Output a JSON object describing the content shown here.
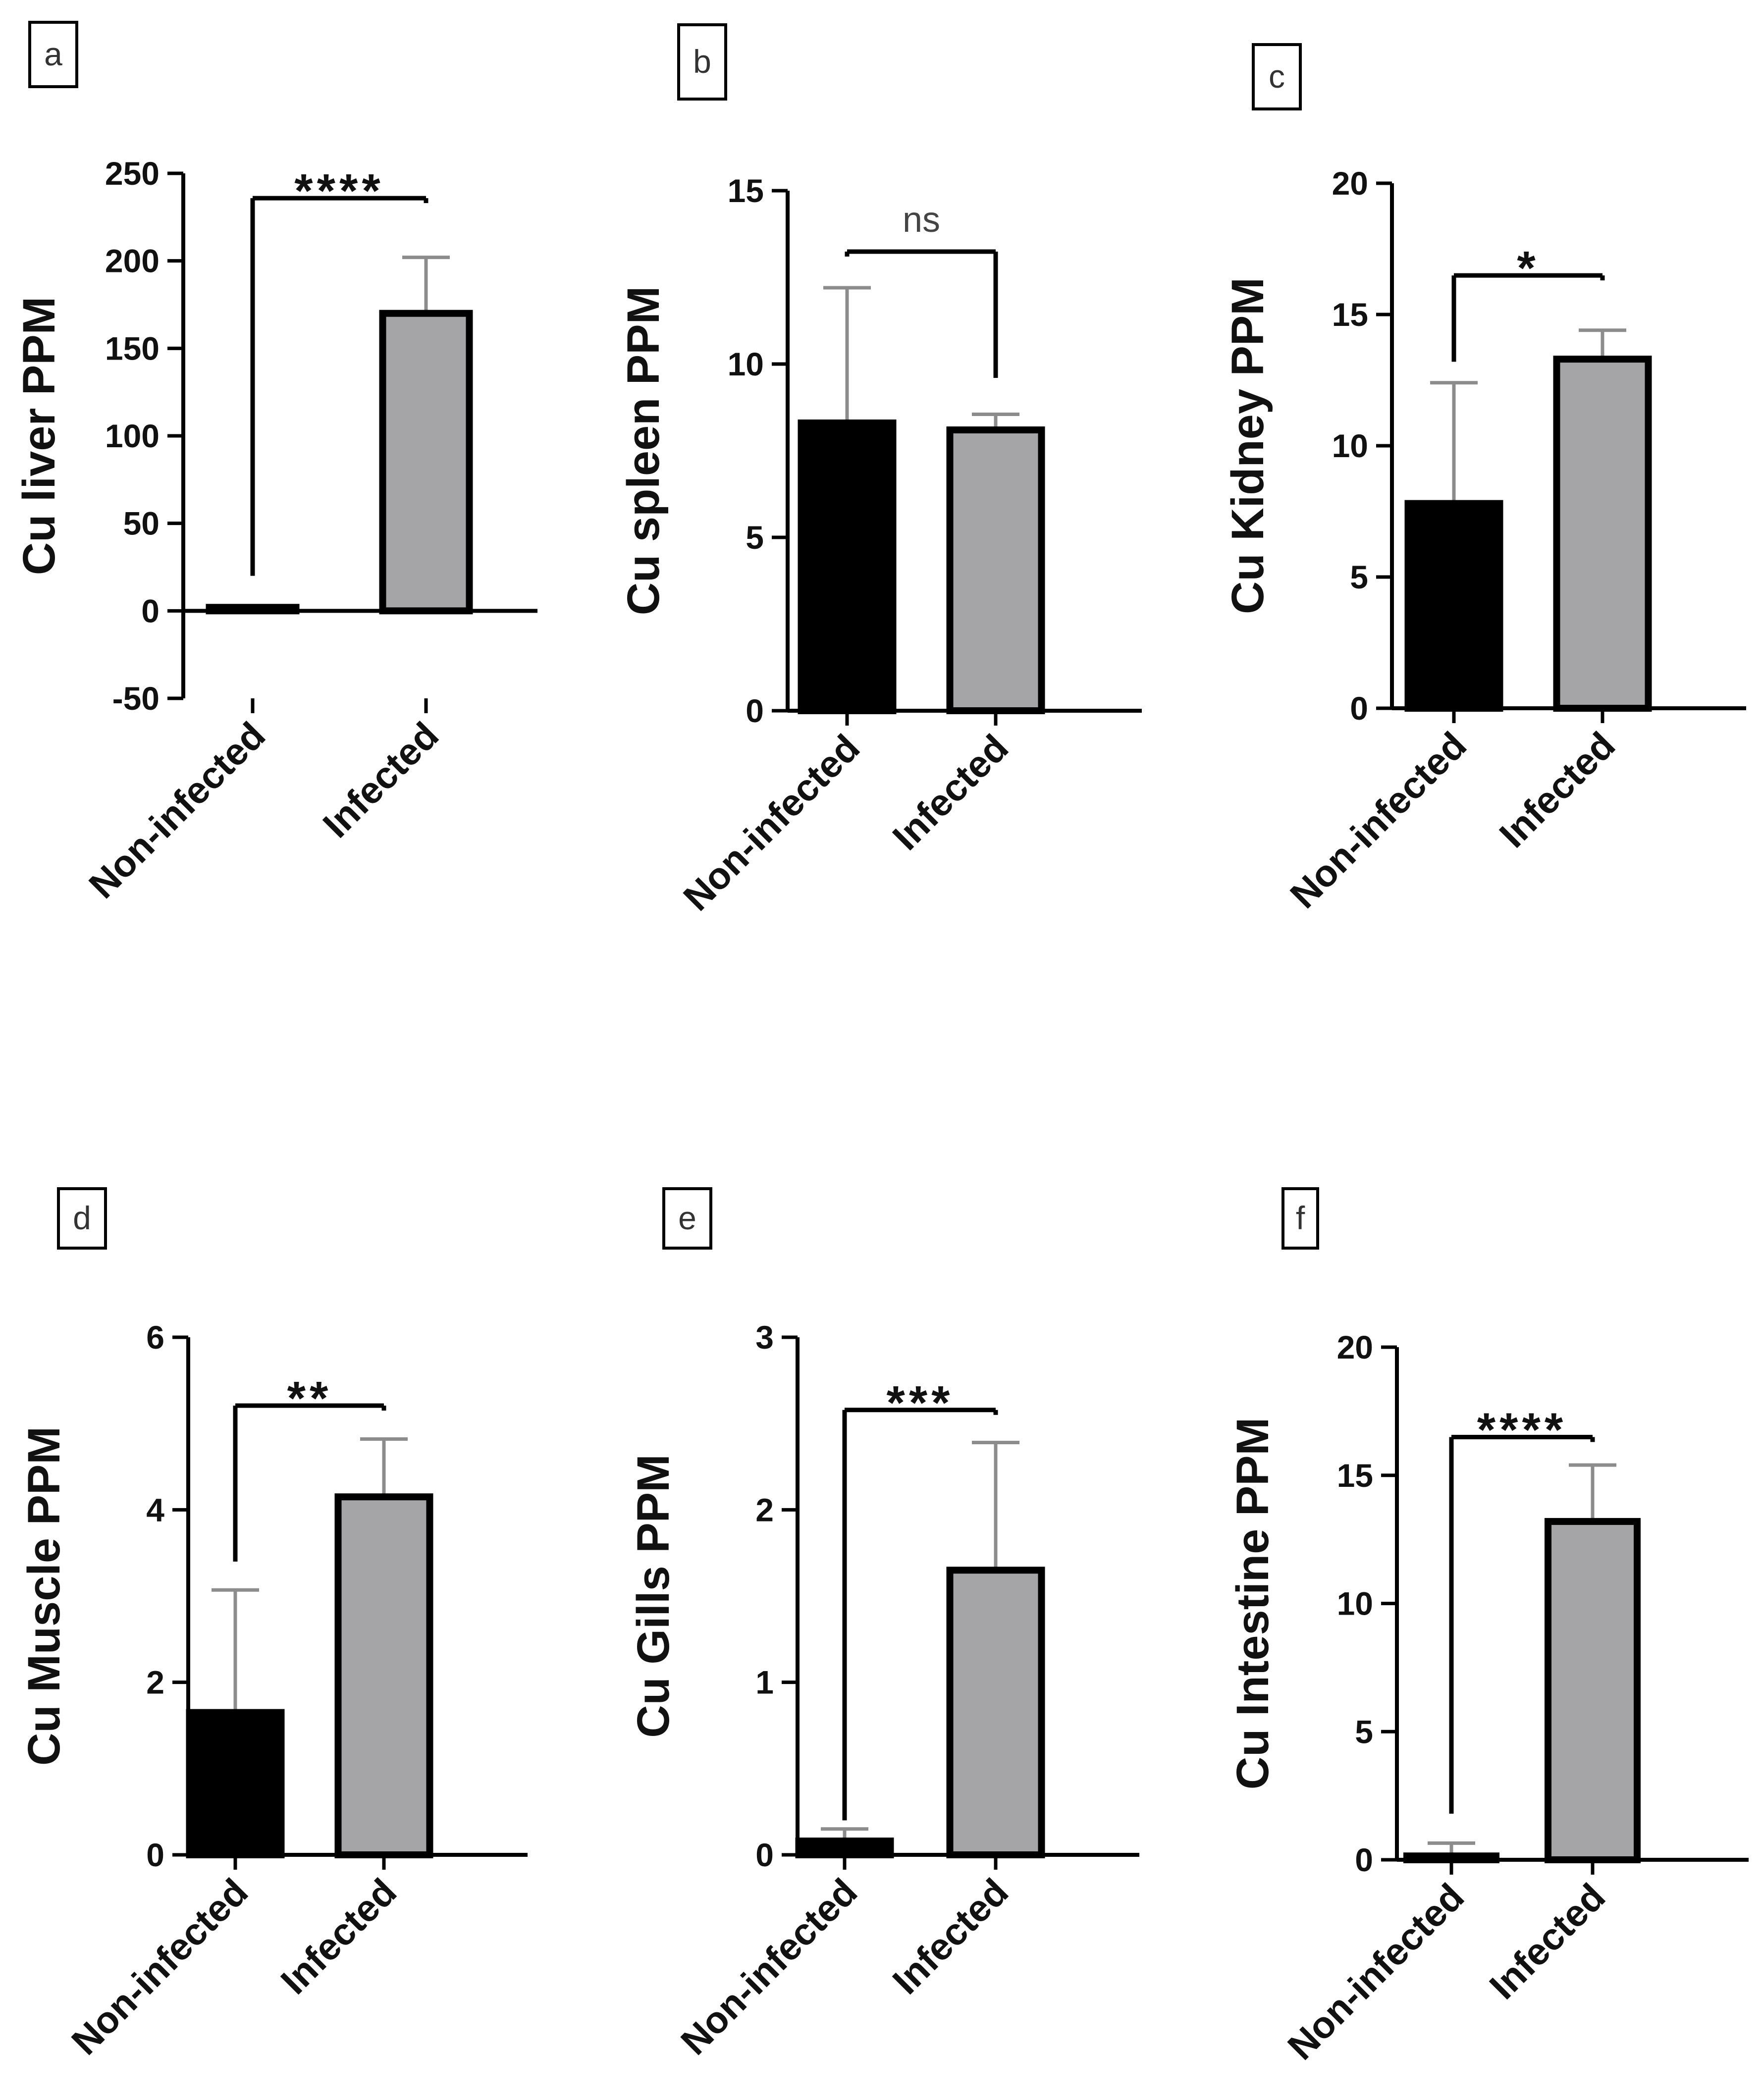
{
  "figure": {
    "colors": {
      "non_infected": "#000000",
      "infected": "#a5a5a8",
      "axis": "#000000",
      "error_bar": "#8c8c8c"
    }
  },
  "chart_data": [
    {
      "panel": "a",
      "type": "bar",
      "ylabel": "Cu liver PPM",
      "categories": [
        "Non-infected",
        "Infected"
      ],
      "values": [
        2,
        170
      ],
      "errors": [
        0,
        32
      ],
      "ylim": [
        -50,
        250
      ],
      "yticks": [
        -50,
        0,
        50,
        100,
        150,
        200,
        250
      ],
      "significance": "****",
      "bracket_ends": [
        20,
        233
      ]
    },
    {
      "panel": "b",
      "type": "bar",
      "ylabel": "Cu spleen PPM",
      "categories": [
        "Non-infected",
        "Infected"
      ],
      "values": [
        8.3,
        8.1
      ],
      "errors": [
        3.9,
        0.45
      ],
      "ylim": [
        0,
        15
      ],
      "yticks": [
        0,
        5,
        10,
        15
      ],
      "significance": "ns",
      "bracket_ends": [
        13.1,
        9.6
      ]
    },
    {
      "panel": "c",
      "type": "bar",
      "ylabel": "Cu Kidney PPM",
      "categories": [
        "Non-infected",
        "Infected"
      ],
      "values": [
        7.8,
        13.3
      ],
      "errors": [
        4.6,
        1.1
      ],
      "ylim": [
        0,
        20
      ],
      "yticks": [
        0,
        5,
        10,
        15,
        20
      ],
      "significance": "*",
      "bracket_ends": [
        13.2,
        16.3
      ]
    },
    {
      "panel": "d",
      "type": "bar",
      "ylabel": "Cu Muscle  PPM",
      "categories": [
        "Non-infected",
        "Infected"
      ],
      "values": [
        1.65,
        4.15
      ],
      "errors": [
        1.42,
        0.67
      ],
      "ylim": [
        0,
        6
      ],
      "yticks": [
        0,
        2,
        4,
        6
      ],
      "significance": "**",
      "bracket_ends": [
        3.4,
        5.15
      ]
    },
    {
      "panel": "e",
      "type": "bar",
      "ylabel": "Cu Gills PPM",
      "categories": [
        "Non-infected",
        "Infected"
      ],
      "values": [
        0.08,
        1.65
      ],
      "errors": [
        0.07,
        0.74
      ],
      "ylim": [
        0,
        3
      ],
      "yticks": [
        0,
        1,
        2,
        3
      ],
      "significance": "***",
      "bracket_ends": [
        0.2,
        2.55
      ]
    },
    {
      "panel": "f",
      "type": "bar",
      "ylabel": "Cu Intestine PPM",
      "categories": [
        "Non-infected",
        "Infected"
      ],
      "values": [
        0.15,
        13.2
      ],
      "errors": [
        0.5,
        2.2
      ],
      "ylim": [
        0,
        20
      ],
      "yticks": [
        0,
        5,
        10,
        15,
        20
      ],
      "significance": "****",
      "bracket_ends": [
        1.8,
        16.3
      ]
    }
  ]
}
